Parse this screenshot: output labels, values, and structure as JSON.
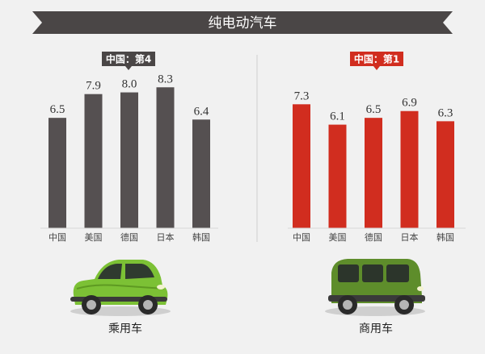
{
  "title": "纯电动汽车",
  "colors": {
    "left": "#555051",
    "right": "#d12d1f",
    "banner": "#4a4646"
  },
  "chart_data": [
    {
      "type": "bar",
      "name": "乘用车",
      "badge": "中国：第4",
      "categories": [
        "中国",
        "美国",
        "德国",
        "日本",
        "韩国"
      ],
      "values": [
        6.5,
        7.9,
        8.0,
        8.3,
        6.4
      ],
      "ylim": [
        0,
        9.5
      ],
      "grid": false,
      "vehicle_label": "乘用车",
      "vehicle_icon": "green-compact-car-icon"
    },
    {
      "type": "bar",
      "name": "商用车",
      "badge": "中国：第1",
      "categories": [
        "中国",
        "美国",
        "德国",
        "日本",
        "韩国"
      ],
      "values": [
        7.3,
        6.1,
        6.5,
        6.9,
        6.3
      ],
      "ylim": [
        0,
        9.5
      ],
      "grid": false,
      "vehicle_label": "商用车",
      "vehicle_icon": "green-van-icon"
    }
  ]
}
